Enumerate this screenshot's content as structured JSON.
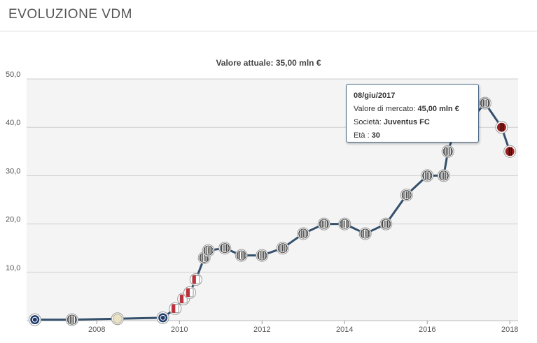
{
  "header": {
    "title": "EVOLUZIONE VDM"
  },
  "colors": {
    "line": "#34506b",
    "plot_bg": "#f4f4f4",
    "grid": "#cfcfcf",
    "badge_juventus": "#444444",
    "badge_milan": "#9b1c1c",
    "badge_inter": "#1f3a6b",
    "badge_genoa": "#c0303a"
  },
  "chart_data": {
    "type": "line",
    "title": "Valore attuale: 35,00 mln €",
    "xlabel": "",
    "ylabel": "",
    "xlim": [
      2006.3,
      2018.2
    ],
    "ylim": [
      0,
      50
    ],
    "x_ticks": [
      "2008",
      "2010",
      "2012",
      "2014",
      "2016",
      "2018"
    ],
    "y_ticks": [
      "10,0",
      "20,0",
      "30,0",
      "40,0",
      "50,0"
    ],
    "grid": true,
    "series": [
      {
        "values": [
          {
            "x": 2006.5,
            "y": 0.2,
            "club": "inter"
          },
          {
            "x": 2007.4,
            "y": 0.2,
            "club": "juventus"
          },
          {
            "x": 2008.5,
            "y": 0.4,
            "club": "other"
          },
          {
            "x": 2009.6,
            "y": 0.6,
            "club": "inter"
          },
          {
            "x": 2009.9,
            "y": 2.5,
            "club": "genoa"
          },
          {
            "x": 2010.1,
            "y": 4.5,
            "club": "genoa"
          },
          {
            "x": 2010.25,
            "y": 5.8,
            "club": "genoa"
          },
          {
            "x": 2010.4,
            "y": 8.5,
            "club": "genoa"
          },
          {
            "x": 2010.6,
            "y": 13.0,
            "club": "juventus"
          },
          {
            "x": 2010.7,
            "y": 14.5,
            "club": "juventus"
          },
          {
            "x": 2011.1,
            "y": 15.0,
            "club": "juventus"
          },
          {
            "x": 2011.5,
            "y": 13.5,
            "club": "juventus"
          },
          {
            "x": 2012.0,
            "y": 13.5,
            "club": "juventus"
          },
          {
            "x": 2012.5,
            "y": 15.0,
            "club": "juventus"
          },
          {
            "x": 2013.0,
            "y": 18.0,
            "club": "juventus"
          },
          {
            "x": 2013.5,
            "y": 20.0,
            "club": "juventus"
          },
          {
            "x": 2014.0,
            "y": 20.0,
            "club": "juventus"
          },
          {
            "x": 2014.5,
            "y": 18.0,
            "club": "juventus"
          },
          {
            "x": 2015.0,
            "y": 20.0,
            "club": "juventus"
          },
          {
            "x": 2015.5,
            "y": 26.0,
            "club": "juventus"
          },
          {
            "x": 2016.0,
            "y": 30.0,
            "club": "juventus"
          },
          {
            "x": 2016.4,
            "y": 30.0,
            "club": "juventus"
          },
          {
            "x": 2016.5,
            "y": 35.0,
            "club": "juventus"
          },
          {
            "x": 2016.7,
            "y": 40.0,
            "club": "juventus"
          },
          {
            "x": 2016.9,
            "y": 40.0,
            "club": "juventus"
          },
          {
            "x": 2017.4,
            "y": 45.0,
            "club": "juventus"
          },
          {
            "x": 2017.8,
            "y": 40.0,
            "club": "milan"
          },
          {
            "x": 2018.0,
            "y": 35.0,
            "club": "milan"
          }
        ]
      }
    ],
    "tooltip": {
      "date": "08/giu/2017",
      "market_value_label": "Valore di mercato:",
      "market_value": "45,00 mln €",
      "club_label": "Società:",
      "club": "Juventus FC",
      "age_label": "Età :",
      "age": "30"
    }
  }
}
